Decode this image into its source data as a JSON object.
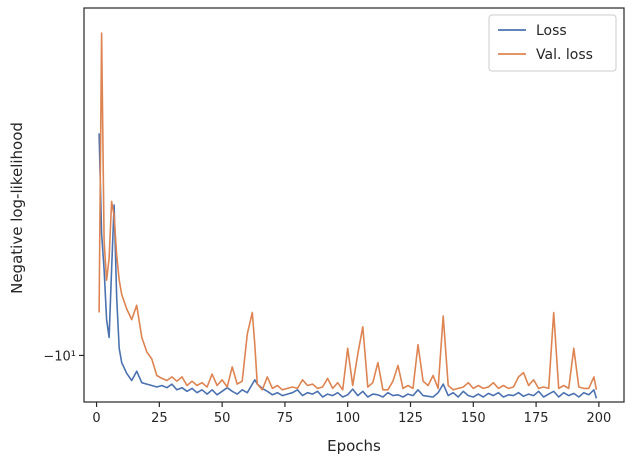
{
  "chart_data": {
    "type": "line",
    "xlabel": "Epochs",
    "ylabel": "Negative log-likelihood",
    "x_ticks": [
      0,
      25,
      50,
      75,
      100,
      125,
      150,
      175,
      200
    ],
    "y_ticks": [
      {
        "value": -10,
        "label": "−10¹"
      }
    ],
    "xlim": [
      -5,
      210
    ],
    "ylim": [
      -10.65,
      -5.15
    ],
    "legend_position": "top-right",
    "grid": false,
    "series": [
      {
        "name": "Loss",
        "color": "#4c72b0",
        "x": [
          1,
          2,
          3,
          4,
          5,
          6,
          7,
          8,
          9,
          10,
          12,
          14,
          16,
          18,
          20,
          22,
          24,
          26,
          28,
          30,
          32,
          34,
          36,
          38,
          40,
          42,
          44,
          46,
          48,
          50,
          52,
          54,
          56,
          58,
          60,
          62,
          63,
          64,
          66,
          68,
          70,
          72,
          74,
          76,
          78,
          80,
          82,
          84,
          86,
          88,
          90,
          92,
          94,
          96,
          98,
          100,
          102,
          104,
          106,
          108,
          110,
          112,
          114,
          116,
          118,
          120,
          122,
          124,
          126,
          128,
          130,
          132,
          134,
          136,
          138,
          140,
          142,
          144,
          146,
          148,
          150,
          152,
          154,
          156,
          158,
          160,
          162,
          164,
          166,
          168,
          170,
          172,
          174,
          176,
          178,
          180,
          182,
          184,
          186,
          188,
          190,
          192,
          194,
          196,
          198,
          199
        ],
        "y": [
          -6.9,
          -8.3,
          -8.8,
          -9.5,
          -9.75,
          -8.8,
          -7.9,
          -9.2,
          -9.9,
          -10.1,
          -10.25,
          -10.35,
          -10.22,
          -10.38,
          -10.4,
          -10.42,
          -10.44,
          -10.42,
          -10.45,
          -10.4,
          -10.48,
          -10.45,
          -10.5,
          -10.46,
          -10.52,
          -10.48,
          -10.54,
          -10.48,
          -10.55,
          -10.5,
          -10.45,
          -10.5,
          -10.54,
          -10.48,
          -10.52,
          -10.4,
          -10.34,
          -10.4,
          -10.46,
          -10.5,
          -10.55,
          -10.52,
          -10.56,
          -10.54,
          -10.52,
          -10.48,
          -10.56,
          -10.52,
          -10.54,
          -10.5,
          -10.58,
          -10.54,
          -10.56,
          -10.52,
          -10.58,
          -10.55,
          -10.47,
          -10.56,
          -10.5,
          -10.58,
          -10.54,
          -10.55,
          -10.58,
          -10.52,
          -10.56,
          -10.55,
          -10.58,
          -10.54,
          -10.56,
          -10.48,
          -10.56,
          -10.57,
          -10.58,
          -10.52,
          -10.4,
          -10.56,
          -10.52,
          -10.58,
          -10.5,
          -10.56,
          -10.58,
          -10.54,
          -10.58,
          -10.53,
          -10.56,
          -10.52,
          -10.58,
          -10.55,
          -10.56,
          -10.52,
          -10.57,
          -10.54,
          -10.56,
          -10.5,
          -10.58,
          -10.54,
          -10.5,
          -10.58,
          -10.52,
          -10.56,
          -10.53,
          -10.58,
          -10.52,
          -10.55,
          -10.48,
          -10.6
        ]
      },
      {
        "name": "Val. loss",
        "color": "#dd8452",
        "x": [
          1,
          2,
          3,
          4,
          5,
          6,
          7,
          8,
          9,
          10,
          12,
          14,
          16,
          18,
          20,
          22,
          24,
          26,
          28,
          30,
          32,
          34,
          36,
          38,
          40,
          42,
          44,
          46,
          48,
          50,
          52,
          54,
          56,
          58,
          60,
          62,
          63,
          64,
          66,
          68,
          70,
          72,
          74,
          76,
          78,
          80,
          82,
          84,
          86,
          88,
          90,
          92,
          94,
          96,
          98,
          100,
          102,
          104,
          106,
          108,
          110,
          112,
          114,
          116,
          118,
          120,
          122,
          124,
          126,
          128,
          130,
          132,
          134,
          136,
          138,
          140,
          142,
          144,
          146,
          148,
          150,
          152,
          154,
          156,
          158,
          160,
          162,
          164,
          166,
          168,
          170,
          172,
          174,
          176,
          178,
          180,
          182,
          184,
          186,
          188,
          190,
          192,
          194,
          196,
          198,
          199
        ],
        "y": [
          -9.4,
          -5.5,
          -8.4,
          -8.95,
          -8.65,
          -7.85,
          -8.05,
          -8.6,
          -8.95,
          -9.15,
          -9.35,
          -9.5,
          -9.3,
          -9.75,
          -9.95,
          -10.05,
          -10.28,
          -10.32,
          -10.35,
          -10.3,
          -10.36,
          -10.3,
          -10.42,
          -10.36,
          -10.42,
          -10.38,
          -10.44,
          -10.26,
          -10.42,
          -10.34,
          -10.44,
          -10.16,
          -10.4,
          -10.36,
          -9.7,
          -9.4,
          -9.85,
          -10.4,
          -10.48,
          -10.3,
          -10.46,
          -10.42,
          -10.48,
          -10.46,
          -10.44,
          -10.46,
          -10.34,
          -10.42,
          -10.4,
          -10.46,
          -10.44,
          -10.32,
          -10.46,
          -10.38,
          -10.48,
          -9.9,
          -10.42,
          -9.98,
          -9.6,
          -10.44,
          -10.38,
          -10.1,
          -10.48,
          -10.48,
          -10.36,
          -10.14,
          -10.46,
          -10.42,
          -10.46,
          -9.85,
          -10.36,
          -10.42,
          -10.28,
          -10.46,
          -9.45,
          -10.42,
          -10.48,
          -10.46,
          -10.44,
          -10.38,
          -10.46,
          -10.42,
          -10.46,
          -10.44,
          -10.38,
          -10.46,
          -10.42,
          -10.46,
          -10.44,
          -10.3,
          -10.24,
          -10.42,
          -10.34,
          -10.46,
          -10.44,
          -10.46,
          -9.4,
          -10.46,
          -10.42,
          -10.46,
          -9.9,
          -10.44,
          -10.46,
          -10.46,
          -10.3,
          -10.48
        ]
      }
    ]
  }
}
